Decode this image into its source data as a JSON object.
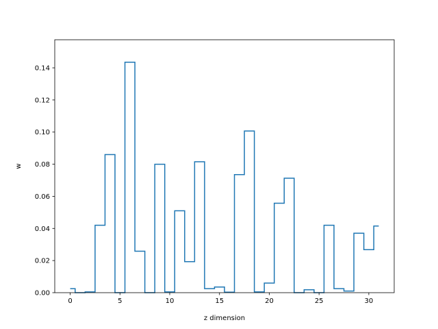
{
  "chart_data": {
    "type": "line",
    "style": "step",
    "x": [
      0,
      1,
      2,
      3,
      4,
      5,
      6,
      7,
      8,
      9,
      10,
      11,
      12,
      13,
      14,
      15,
      16,
      17,
      18,
      19,
      20,
      21,
      22,
      23,
      24,
      25,
      26,
      27,
      28,
      29,
      30,
      31
    ],
    "series": [
      {
        "values": [
          0.0025,
          0.0,
          0.0005,
          0.042,
          0.086,
          0.0,
          0.1435,
          0.0258,
          0.0,
          0.08,
          0.0005,
          0.051,
          0.0193,
          0.0815,
          0.0025,
          0.0035,
          0.0003,
          0.0735,
          0.1007,
          0.0005,
          0.006,
          0.0557,
          0.0713,
          0.0,
          0.0018,
          0.0,
          0.042,
          0.0025,
          0.001,
          0.037,
          0.0268,
          0.0415
        ],
        "color": "#1f77b4"
      }
    ],
    "xlabel": "z dimension",
    "ylabel": "w",
    "xlim": [
      -1.55,
      32.55
    ],
    "ylim": [
      0.0,
      0.1575
    ],
    "xticks": [
      0,
      5,
      10,
      15,
      20,
      25,
      30
    ],
    "xtick_labels": [
      "0",
      "5",
      "10",
      "15",
      "20",
      "25",
      "30"
    ],
    "yticks": [
      0.0,
      0.02,
      0.04,
      0.06,
      0.08,
      0.1,
      0.12,
      0.14
    ],
    "ytick_labels": [
      "0.00",
      "0.02",
      "0.04",
      "0.06",
      "0.08",
      "0.10",
      "0.12",
      "0.14"
    ],
    "grid": false,
    "legend": "none"
  }
}
